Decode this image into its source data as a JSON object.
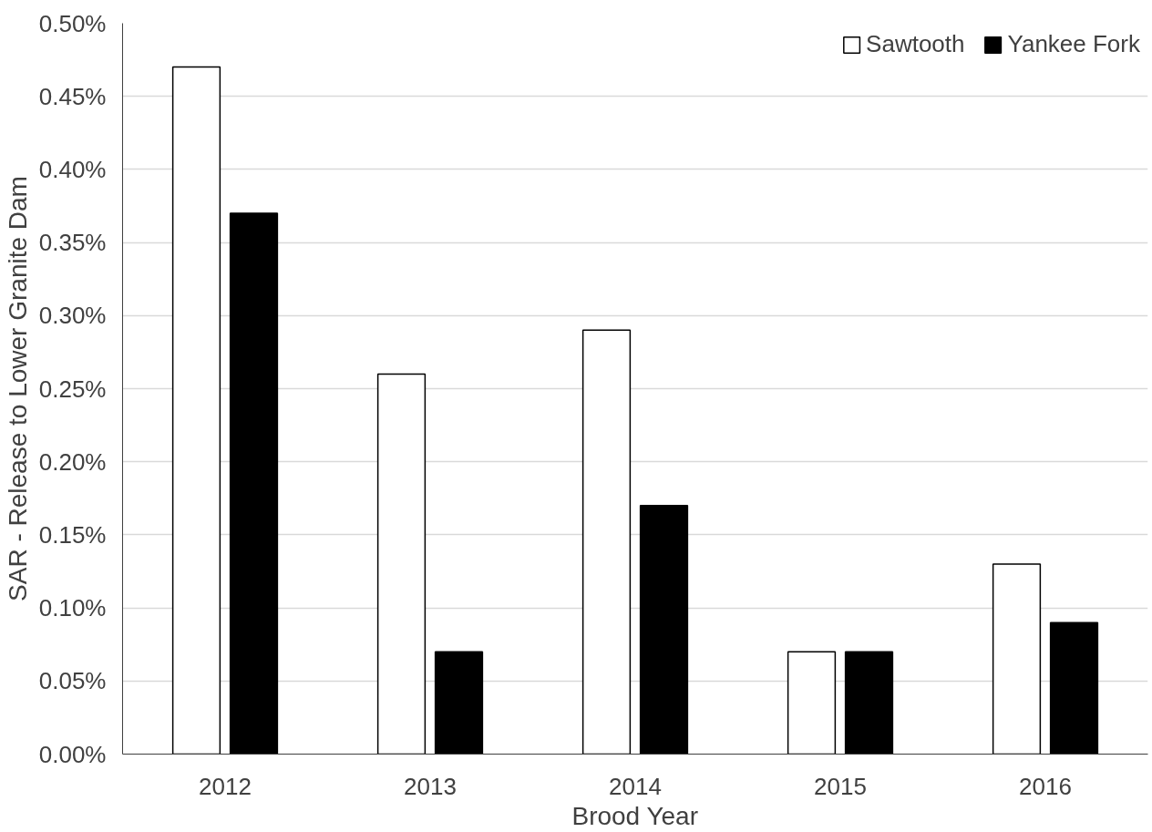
{
  "chart_data": {
    "type": "bar",
    "xlabel": "Brood Year",
    "ylabel": "SAR - Release to Lower Granite Dam",
    "categories": [
      "2012",
      "2013",
      "2014",
      "2015",
      "2016"
    ],
    "series": [
      {
        "name": "Sawtooth",
        "color": "#ffffff",
        "values": [
          0.47,
          0.26,
          0.29,
          0.07,
          0.13
        ]
      },
      {
        "name": "Yankee Fork",
        "color": "#000000",
        "values": [
          0.37,
          0.07,
          0.17,
          0.07,
          0.09
        ]
      }
    ],
    "ylim": [
      0,
      0.5
    ],
    "yticks": [
      {
        "value": 0,
        "label": "0.00%"
      },
      {
        "value": 0.05,
        "label": "0.05%"
      },
      {
        "value": 0.1,
        "label": "0.10%"
      },
      {
        "value": 0.15,
        "label": "0.15%"
      },
      {
        "value": 0.2,
        "label": "0.20%"
      },
      {
        "value": 0.25,
        "label": "0.25%"
      },
      {
        "value": 0.3,
        "label": "0.30%"
      },
      {
        "value": 0.35,
        "label": "0.35%"
      },
      {
        "value": 0.4,
        "label": "0.40%"
      },
      {
        "value": 0.45,
        "label": "0.45%"
      },
      {
        "value": 0.5,
        "label": "0.50%"
      }
    ],
    "grid": "y",
    "legend": "top right"
  }
}
